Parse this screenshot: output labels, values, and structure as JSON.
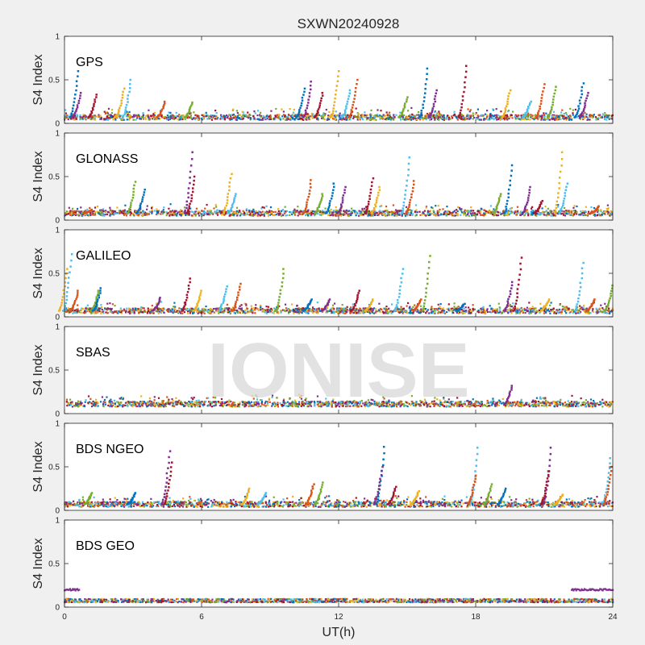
{
  "figure": {
    "title": "SXWN20240928",
    "watermark": "IONISE"
  },
  "chart_data": {
    "type": "scatter",
    "title": "SXWN20240928",
    "xlabel": "UT(h)",
    "xlim": [
      0,
      24
    ],
    "xticks": [
      0,
      6,
      12,
      18,
      24
    ],
    "grid": false,
    "panels": [
      {
        "label": "GPS",
        "ylabel": "S4 Index",
        "ylim": [
          0,
          1
        ],
        "yticks": [
          0,
          0.5,
          1
        ],
        "baseline": 0.07,
        "spikes": [
          [
            0.6,
            0.6
          ],
          [
            0.7,
            0.35
          ],
          [
            1.4,
            0.33
          ],
          [
            2.6,
            0.4
          ],
          [
            2.9,
            0.5
          ],
          [
            4.4,
            0.25
          ],
          [
            5.6,
            0.24
          ],
          [
            10.5,
            0.4
          ],
          [
            10.8,
            0.48
          ],
          [
            11.3,
            0.35
          ],
          [
            12.0,
            0.6
          ],
          [
            12.5,
            0.38
          ],
          [
            12.8,
            0.5
          ],
          [
            15.0,
            0.3
          ],
          [
            15.9,
            0.63
          ],
          [
            16.3,
            0.38
          ],
          [
            17.6,
            0.66
          ],
          [
            19.5,
            0.38
          ],
          [
            20.4,
            0.25
          ],
          [
            21.0,
            0.45
          ],
          [
            21.5,
            0.42
          ],
          [
            22.7,
            0.46
          ],
          [
            22.9,
            0.35
          ]
        ]
      },
      {
        "label": "GLONASS",
        "ylabel": "S4 Index",
        "ylim": [
          0,
          1
        ],
        "yticks": [
          0,
          0.5,
          1
        ],
        "baseline": 0.08,
        "spikes": [
          [
            1.2,
            0.12
          ],
          [
            3.1,
            0.44
          ],
          [
            3.5,
            0.35
          ],
          [
            5.6,
            0.78
          ],
          [
            5.7,
            0.5
          ],
          [
            7.3,
            0.53
          ],
          [
            7.5,
            0.3
          ],
          [
            10.8,
            0.46
          ],
          [
            11.3,
            0.3
          ],
          [
            11.8,
            0.42
          ],
          [
            12.3,
            0.38
          ],
          [
            13.5,
            0.48
          ],
          [
            13.8,
            0.38
          ],
          [
            15.1,
            0.72
          ],
          [
            15.3,
            0.45
          ],
          [
            19.1,
            0.3
          ],
          [
            19.6,
            0.63
          ],
          [
            20.4,
            0.38
          ],
          [
            20.9,
            0.22
          ],
          [
            21.8,
            0.78
          ],
          [
            22.0,
            0.42
          ],
          [
            23.4,
            0.16
          ]
        ]
      },
      {
        "label": "GALILEO",
        "ylabel": "S4 Index",
        "ylim": [
          0,
          1
        ],
        "yticks": [
          0,
          0.5,
          1
        ],
        "baseline": 0.07,
        "spikes": [
          [
            0.1,
            0.55
          ],
          [
            0.3,
            0.72
          ],
          [
            0.6,
            0.3
          ],
          [
            1.5,
            0.3
          ],
          [
            1.6,
            0.33
          ],
          [
            4.2,
            0.22
          ],
          [
            5.5,
            0.44
          ],
          [
            6.0,
            0.3
          ],
          [
            7.1,
            0.35
          ],
          [
            7.7,
            0.38
          ],
          [
            9.6,
            0.55
          ],
          [
            10.8,
            0.2
          ],
          [
            11.6,
            0.2
          ],
          [
            12.9,
            0.3
          ],
          [
            13.5,
            0.2
          ],
          [
            14.8,
            0.55
          ],
          [
            15.6,
            0.2
          ],
          [
            16.0,
            0.7
          ],
          [
            17.5,
            0.15
          ],
          [
            19.6,
            0.4
          ],
          [
            20.0,
            0.68
          ],
          [
            21.2,
            0.2
          ],
          [
            22.7,
            0.62
          ],
          [
            23.2,
            0.2
          ],
          [
            24.0,
            0.36
          ]
        ]
      },
      {
        "label": "SBAS",
        "ylabel": "S4 Index",
        "ylim": [
          0,
          1
        ],
        "yticks": [
          0,
          0.5,
          1
        ],
        "baseline": 0.11,
        "spikes": [
          [
            19.6,
            0.32
          ]
        ]
      },
      {
        "label": "BDS NGEO",
        "ylabel": "S4 Index",
        "ylim": [
          0,
          1
        ],
        "yticks": [
          0,
          0.5,
          1
        ],
        "baseline": 0.07,
        "spikes": [
          [
            1.2,
            0.2
          ],
          [
            3.1,
            0.2
          ],
          [
            4.6,
            0.68
          ],
          [
            4.7,
            0.55
          ],
          [
            8.1,
            0.25
          ],
          [
            8.8,
            0.2
          ],
          [
            10.9,
            0.3
          ],
          [
            11.3,
            0.32
          ],
          [
            14.0,
            0.73
          ],
          [
            13.9,
            0.5
          ],
          [
            14.5,
            0.27
          ],
          [
            15.5,
            0.22
          ],
          [
            18.1,
            0.72
          ],
          [
            18.0,
            0.4
          ],
          [
            18.7,
            0.3
          ],
          [
            19.3,
            0.25
          ],
          [
            21.3,
            0.72
          ],
          [
            21.2,
            0.45
          ],
          [
            21.8,
            0.18
          ],
          [
            23.9,
            0.6
          ],
          [
            23.95,
            0.5
          ]
        ]
      },
      {
        "label": "BDS GEO",
        "ylabel": "S4 Index",
        "ylim": [
          0,
          1
        ],
        "yticks": [
          0,
          0.5,
          1
        ],
        "baseline": 0.07,
        "spikes": []
      }
    ],
    "series_colors": [
      "#0072BD",
      "#D95319",
      "#EDB120",
      "#7E2F8E",
      "#77AC30",
      "#4DBEEE",
      "#A2142F"
    ]
  }
}
